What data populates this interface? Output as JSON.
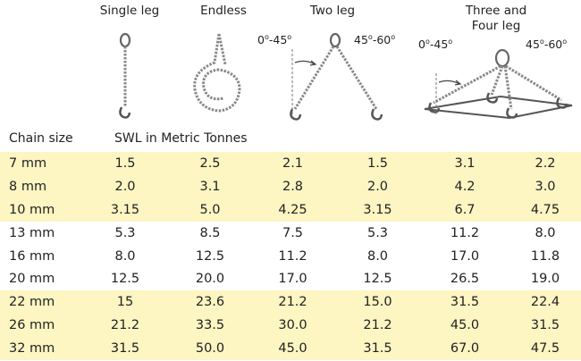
{
  "headers": {
    "single_leg": "Single leg",
    "endless": "Endless",
    "two_leg": "Two leg",
    "three_four_line1": "Three and",
    "three_four_line2": "Four leg"
  },
  "angles": {
    "two_leg_low": "0",
    "two_leg_low_to": "-45",
    "two_leg_high": "45",
    "two_leg_high_to": "-60",
    "multi_low": "0",
    "multi_low_to": "-45",
    "multi_high": "45",
    "multi_high_to": "-60",
    "deg": "o"
  },
  "labels": {
    "chain_size": "Chain size",
    "swl": "SWL in Metric Tonnes"
  },
  "rows": [
    {
      "size": "7 mm",
      "values": [
        "1.5",
        "2.5",
        "2.1",
        "1.5",
        "3.1",
        "2.2"
      ],
      "band": true
    },
    {
      "size": "8 mm",
      "values": [
        "2.0",
        "3.1",
        "2.8",
        "2.0",
        "4.2",
        "3.0"
      ],
      "band": true
    },
    {
      "size": "10 mm",
      "values": [
        "3.15",
        "5.0",
        "4.25",
        "3.15",
        "6.7",
        "4.75"
      ],
      "band": true
    },
    {
      "size": "13 mm",
      "values": [
        "5.3",
        "8.5",
        "7.5",
        "5.3",
        "11.2",
        "8.0"
      ],
      "band": false
    },
    {
      "size": "16 mm",
      "values": [
        "8.0",
        "12.5",
        "11.2",
        "8.0",
        "17.0",
        "11.8"
      ],
      "band": false
    },
    {
      "size": "20 mm",
      "values": [
        "12.5",
        "20.0",
        "17.0",
        "12.5",
        "26.5",
        "19.0"
      ],
      "band": false
    },
    {
      "size": "22 mm",
      "values": [
        "15",
        "23.6",
        "21.2",
        "15.0",
        "31.5",
        "22.4"
      ],
      "band": true
    },
    {
      "size": "26 mm",
      "values": [
        "21.2",
        "33.5",
        "30.0",
        "21.2",
        "45.0",
        "31.5"
      ],
      "band": true
    },
    {
      "size": "32 mm",
      "values": [
        "31.5",
        "50.0",
        "45.0",
        "31.5",
        "67.0",
        "47.5"
      ],
      "band": true
    }
  ]
}
